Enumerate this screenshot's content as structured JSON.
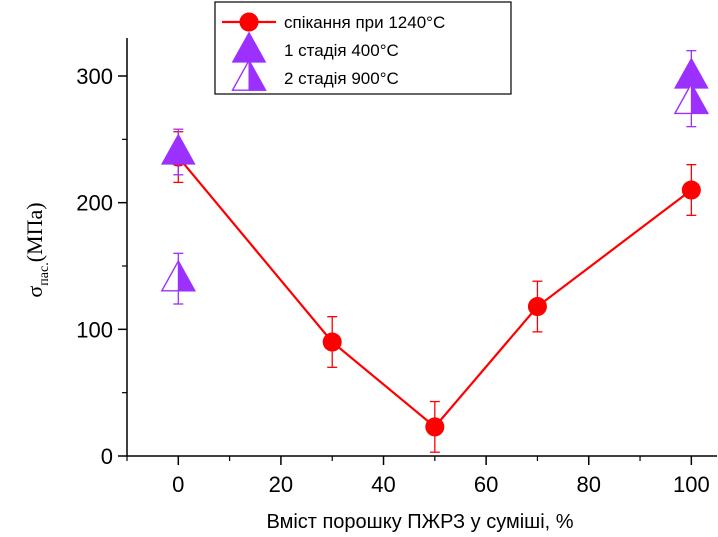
{
  "chart_data": {
    "type": "scatter",
    "xlabel": "Вміст порошку ПЖРЗ у суміші, %",
    "ylabel": {
      "symbol": "σ",
      "subscript": "пас.",
      "rest": "(МПа)"
    },
    "xlim": [
      -10,
      105
    ],
    "ylim": [
      0,
      330
    ],
    "xticks": [
      0,
      20,
      40,
      60,
      80,
      100
    ],
    "yticks": [
      0,
      100,
      200,
      300
    ],
    "grid": false,
    "legend_position": "top",
    "series": [
      {
        "name": "спікання при 1240°С",
        "color": "#ff0000",
        "marker": "circle",
        "line": true,
        "points": [
          {
            "x": 0,
            "y": 236,
            "err": 20
          },
          {
            "x": 30,
            "y": 90,
            "err": 20
          },
          {
            "x": 50,
            "y": 23,
            "err": 20
          },
          {
            "x": 70,
            "y": 118,
            "err": 20
          },
          {
            "x": 100,
            "y": 210,
            "err": 20
          }
        ]
      },
      {
        "name": "1 стадія 400°С",
        "color": "#9b30ff",
        "marker": "triangle",
        "line": false,
        "points": [
          {
            "x": 0,
            "y": 240,
            "err": 18
          },
          {
            "x": 100,
            "y": 300,
            "err": 20
          }
        ]
      },
      {
        "name": "2 стадія 900°С",
        "color": "#9b30ff",
        "marker": "half-triangle",
        "line": false,
        "points": [
          {
            "x": 0,
            "y": 140,
            "err": 20
          },
          {
            "x": 100,
            "y": 280,
            "err": 20
          }
        ]
      }
    ]
  }
}
